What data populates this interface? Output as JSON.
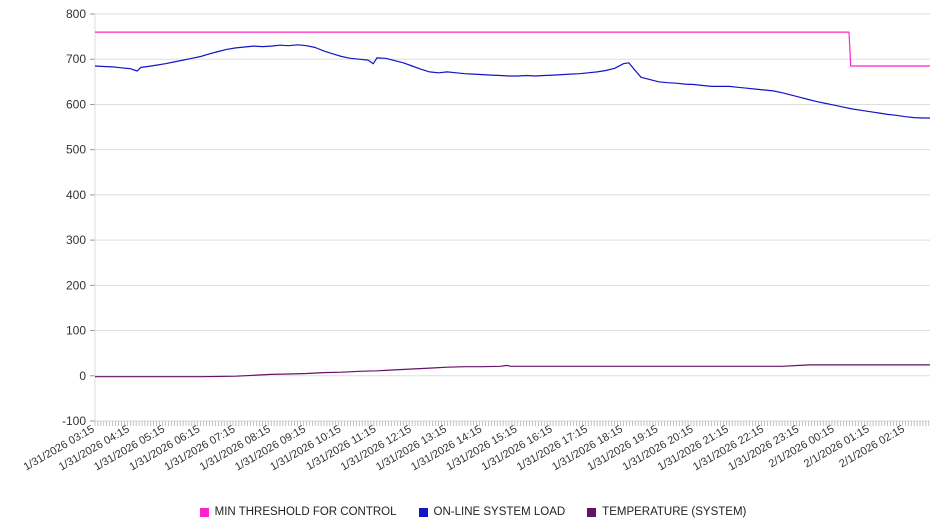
{
  "chart_data": {
    "type": "line",
    "title": "",
    "xlabel": "",
    "ylabel": "",
    "grid": true,
    "legend_position": "bottom",
    "ylim": [
      -100,
      800
    ],
    "y_ticks": [
      800,
      700,
      600,
      500,
      400,
      300,
      200,
      100,
      0,
      -100
    ],
    "x_max": 23.7,
    "x_labels": [
      "1/31/2026 03:15",
      "1/31/2026 04:15",
      "1/31/2026 05:15",
      "1/31/2026 06:15",
      "1/31/2026 07:15",
      "1/31/2026 08:15",
      "1/31/2026 09:15",
      "1/31/2026 10:15",
      "1/31/2026 11:15",
      "1/31/2026 12:15",
      "1/31/2026 13:15",
      "1/31/2026 14:15",
      "1/31/2026 15:15",
      "1/31/2026 16:15",
      "1/31/2026 17:15",
      "1/31/2026 18:15",
      "1/31/2026 19:15",
      "1/31/2026 20:15",
      "1/31/2026 21:15",
      "1/31/2026 22:15",
      "1/31/2026 23:15",
      "2/1/2026 00:15",
      "2/1/2026 01:15",
      "2/1/2026 02:15"
    ],
    "series": [
      {
        "name": "MIN THRESHOLD FOR CONTROL",
        "color": "#ff22cc",
        "x": [
          0,
          21.4,
          21.45,
          23.7
        ],
        "values": [
          760,
          760,
          685,
          685
        ]
      },
      {
        "name": "ON-LINE SYSTEM LOAD",
        "color": "#1414c8",
        "x": [
          0,
          0.25,
          0.5,
          0.75,
          1,
          1.2,
          1.3,
          1.5,
          1.75,
          2,
          2.25,
          2.5,
          2.75,
          3,
          3.25,
          3.5,
          3.75,
          4,
          4.25,
          4.5,
          4.75,
          5,
          5.25,
          5.5,
          5.75,
          6,
          6.25,
          6.5,
          6.75,
          7,
          7.25,
          7.5,
          7.75,
          7.9,
          8,
          8.25,
          8.5,
          8.75,
          9,
          9.25,
          9.5,
          9.75,
          10,
          10.25,
          10.5,
          10.75,
          11,
          11.25,
          11.5,
          11.75,
          12,
          12.25,
          12.5,
          12.75,
          13,
          13.25,
          13.5,
          13.75,
          14,
          14.25,
          14.5,
          14.75,
          15,
          15.15,
          15.3,
          15.5,
          15.75,
          16,
          16.25,
          16.5,
          16.75,
          17,
          17.25,
          17.5,
          17.75,
          18,
          18.25,
          18.5,
          18.75,
          19,
          19.25,
          19.5,
          19.75,
          20,
          20.25,
          20.5,
          20.75,
          21,
          21.25,
          21.5,
          21.75,
          22,
          22.25,
          22.5,
          22.75,
          23,
          23.25,
          23.5,
          23.7
        ],
        "values": [
          685,
          684,
          683,
          681,
          679,
          674,
          682,
          684,
          687,
          690,
          694,
          698,
          702,
          706,
          712,
          717,
          722,
          725,
          727,
          729,
          728,
          729,
          731,
          730,
          732,
          730,
          726,
          718,
          712,
          706,
          702,
          700,
          698,
          690,
          703,
          702,
          697,
          692,
          685,
          678,
          672,
          670,
          672,
          670,
          668,
          667,
          666,
          665,
          664,
          663,
          663,
          664,
          663,
          664,
          665,
          666,
          667,
          668,
          670,
          672,
          675,
          680,
          690,
          692,
          678,
          660,
          655,
          650,
          648,
          647,
          645,
          644,
          642,
          640,
          640,
          640,
          638,
          636,
          634,
          632,
          630,
          626,
          621,
          616,
          611,
          606,
          602,
          598,
          594,
          590,
          587,
          584,
          581,
          578,
          576,
          573,
          571,
          570,
          570
        ]
      },
      {
        "name": "TEMPERATURE (SYSTEM)",
        "color": "#661166",
        "x": [
          0,
          1,
          2,
          3,
          4,
          4.5,
          5,
          5.5,
          6,
          6.5,
          7,
          7.5,
          8,
          8.5,
          9,
          9.5,
          10,
          10.5,
          11,
          11.5,
          11.7,
          11.8,
          12,
          12.5,
          13,
          14,
          15,
          16,
          17,
          18,
          19,
          19.5,
          20,
          20.3,
          21,
          22,
          23,
          23.7
        ],
        "values": [
          -2,
          -2,
          -2,
          -2,
          -1,
          1,
          3,
          4,
          5,
          7,
          8,
          10,
          11,
          13,
          15,
          17,
          19,
          20,
          20,
          21,
          23,
          21,
          21,
          21,
          21,
          21,
          21,
          21,
          21,
          21,
          21,
          21,
          23,
          24,
          24,
          24,
          24,
          24
        ]
      }
    ]
  }
}
